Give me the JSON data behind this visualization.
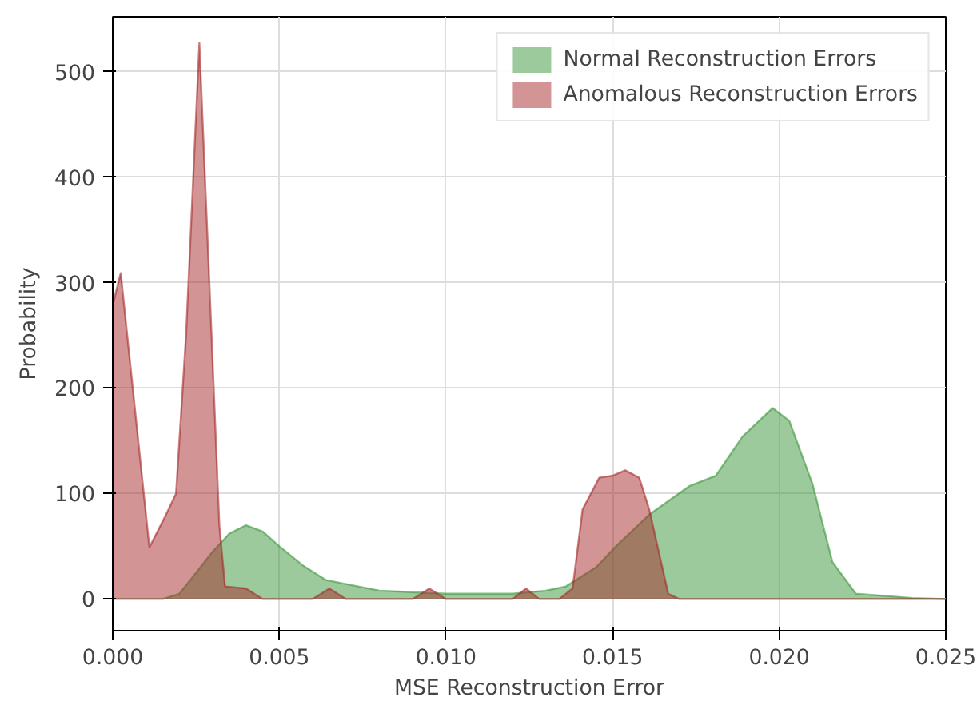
{
  "chart_data": {
    "type": "area",
    "xlabel": "MSE Reconstruction Error",
    "ylabel": "Probability",
    "xlim": [
      0,
      0.025
    ],
    "ylim": [
      -30,
      552
    ],
    "xticks": [
      {
        "value": 0,
        "label": "0.000"
      },
      {
        "value": 0.005,
        "label": "0.005"
      },
      {
        "value": 0.01,
        "label": "0.010"
      },
      {
        "value": 0.015,
        "label": "0.015"
      },
      {
        "value": 0.02,
        "label": "0.020"
      },
      {
        "value": 0.025,
        "label": "0.025"
      }
    ],
    "yticks": [
      0,
      100,
      200,
      300,
      400,
      500
    ],
    "grid": true,
    "legend": "top right",
    "series": [
      {
        "name": "Normal Reconstruction Errors",
        "color": "#3c963c",
        "x": [
          0,
          0.0015,
          0.002,
          0.0025,
          0.003,
          0.0035,
          0.004,
          0.0045,
          0.005,
          0.0057,
          0.0064,
          0.008,
          0.01,
          0.012,
          0.013,
          0.0136,
          0.0145,
          0.0151,
          0.0161,
          0.0173,
          0.0181,
          0.0189,
          0.0198,
          0.0203,
          0.021,
          0.0216,
          0.0223,
          0.024,
          0.025
        ],
        "values": [
          0,
          0,
          5,
          25,
          45,
          62,
          70,
          64,
          50,
          32,
          18,
          8,
          5,
          5,
          8,
          12,
          30,
          50,
          80,
          107,
          117,
          154,
          181,
          169,
          109,
          35,
          5,
          1,
          0
        ]
      },
      {
        "name": "Anomalous Reconstruction Errors",
        "color": "#a52a2a",
        "x": [
          0,
          0.00024,
          0.0006,
          0.0011,
          0.0016,
          0.0019,
          0.0022,
          0.0026,
          0.0029,
          0.0032,
          0.00337,
          0.004,
          0.0045,
          0.006,
          0.0065,
          0.007,
          0.009,
          0.0095,
          0.01,
          0.012,
          0.0124,
          0.0128,
          0.0134,
          0.0138,
          0.0141,
          0.0146,
          0.015,
          0.01538,
          0.0158,
          0.0161,
          0.01667,
          0.017,
          0.025
        ],
        "values": [
          279,
          309,
          200,
          49,
          80,
          100,
          250,
          527,
          300,
          70,
          12,
          10,
          0,
          0,
          10,
          0,
          0,
          10,
          0,
          0,
          10,
          0,
          0,
          10,
          85,
          115,
          117,
          122,
          115,
          85,
          5,
          0,
          0
        ]
      }
    ]
  }
}
